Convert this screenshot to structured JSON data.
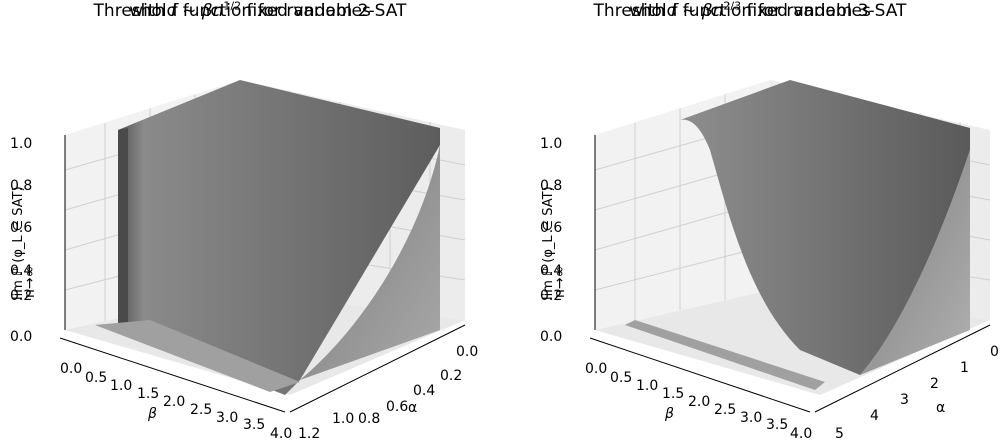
{
  "chart_data": [
    {
      "type": "surface",
      "title_line1": "Threshold function for random 2-SAT",
      "title_line2_prefix": "with ",
      "title_line2_f": "f",
      "title_line2_sim": " ~ ",
      "title_line2_beta": "βn",
      "title_line2_exp": "1/2",
      "title_line2_suffix": " fixed variables",
      "xlabel": "β",
      "ylabel": "α",
      "zlabel": "lim ℙ (φ_L ∈ SAT)",
      "zlabel_sub": "n→∞",
      "xticks": [
        "0.0",
        "0.5",
        "1.0",
        "1.5",
        "2.0",
        "2.5",
        "3.0",
        "3.5",
        "4.0"
      ],
      "yticks": [
        "0.0",
        "0.2",
        "0.4",
        "0.6",
        "0.8",
        "1.0",
        "1.2"
      ],
      "zticks": [
        "0.0",
        "0.2",
        "0.4",
        "0.6",
        "0.8",
        "1.0"
      ],
      "xlim": [
        0,
        4
      ],
      "ylim": [
        0,
        1.2
      ],
      "zlim": [
        0,
        1
      ],
      "surface": "≈1 for α < 1 (sharp drop near β=0), smoothly decreasing to 0 with β for α ≥ 1",
      "color": "#777777"
    },
    {
      "type": "surface",
      "title_line1": "Threshold function for random 3-SAT",
      "title_line2_prefix": "with ",
      "title_line2_f": "f",
      "title_line2_sim": " ~ ",
      "title_line2_beta": "βn",
      "title_line2_exp": "2/3",
      "title_line2_suffix": " fixed variables",
      "xlabel": "β",
      "ylabel": "α",
      "zlabel": "lim ℙ (φ_L ∈ SAT)",
      "zlabel_sub": "n→∞",
      "xticks": [
        "0.0",
        "0.5",
        "1.0",
        "1.5",
        "2.0",
        "2.5",
        "3.0",
        "3.5",
        "4.0"
      ],
      "yticks": [
        "0",
        "1",
        "2",
        "3",
        "4",
        "5"
      ],
      "zticks": [
        "0.0",
        "0.2",
        "0.4",
        "0.6",
        "0.8",
        "1.0"
      ],
      "xlim": [
        0,
        4
      ],
      "ylim": [
        0,
        5
      ],
      "zlim": [
        0,
        1
      ],
      "surface": "≈1 for small α, sigmoidal drop to 0 around α ≈ 4.27 varying with β",
      "color": "#777777"
    }
  ]
}
